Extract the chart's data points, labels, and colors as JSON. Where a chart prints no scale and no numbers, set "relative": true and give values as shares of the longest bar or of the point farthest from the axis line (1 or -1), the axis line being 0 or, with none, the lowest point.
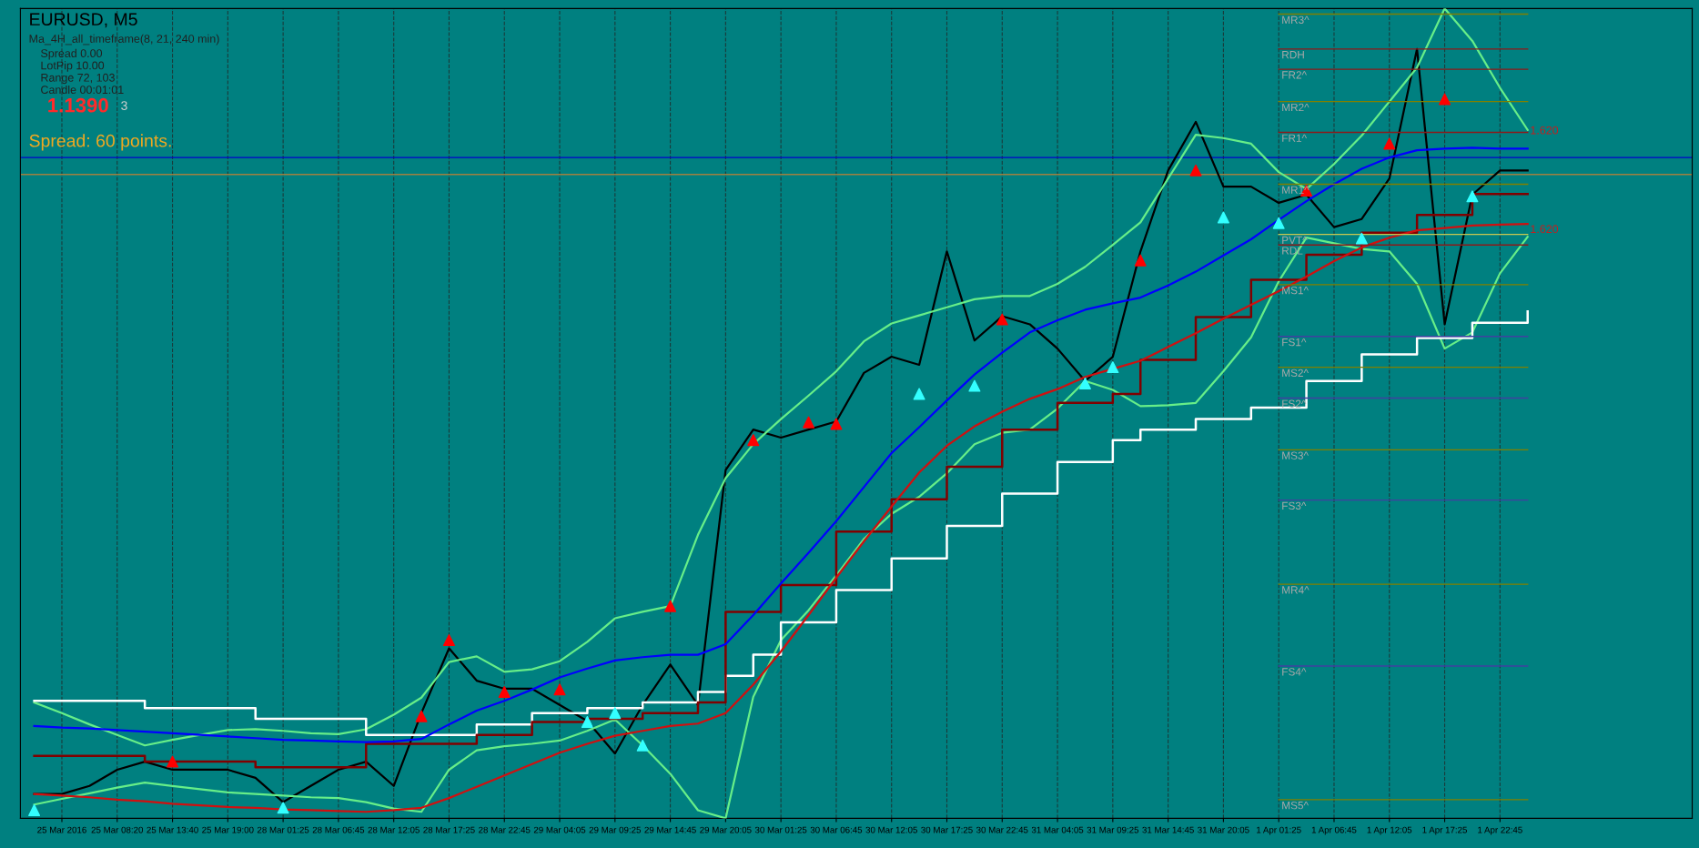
{
  "chart_data": {
    "type": "line",
    "title": "EURUSD, M5",
    "relative": true,
    "tick_labels": "x",
    "grid": true,
    "categories": [
      null,
      "25 Mar 2016",
      null,
      "25 Mar 08:20",
      null,
      "25 Mar 13:40",
      null,
      "25 Mar 19:00",
      null,
      "28 Mar 01:25",
      null,
      "28 Mar 06:45",
      null,
      "28 Mar 12:05",
      null,
      "28 Mar 17:25",
      null,
      "28 Mar 22:45",
      null,
      "29 Mar 04:05",
      null,
      "29 Mar 09:25",
      null,
      "29 Mar 14:45",
      null,
      "29 Mar 20:05",
      null,
      "30 Mar 01:25",
      null,
      "30 Mar 06:45",
      null,
      "30 Mar 12:05",
      null,
      "30 Mar 17:25",
      null,
      "30 Mar 22:45",
      null,
      "31 Mar 04:05",
      null,
      "31 Mar 09:25",
      null,
      "31 Mar 14:45",
      null,
      "31 Mar 20:05",
      null,
      "1 Apr 01:25",
      null,
      "1 Apr 06:45",
      null,
      "1 Apr 12:05",
      null,
      "1 Apr 17:25",
      null,
      "1 Apr 22:45",
      null
    ],
    "annotations": [
      "Ma_4H_all_timeframe(8, 21, 240 min)",
      "Spread 0.00",
      "LotPip 10.00",
      "Range 72, 103",
      "Candle 00:01:01",
      "1.1390",
      "3",
      "Spread: 60 points.",
      "1.620",
      "1.620"
    ],
    "ref_lines": [
      {
        "axis": "y",
        "value": 0.816,
        "color": "#0000cd"
      },
      {
        "axis": "y",
        "value": 0.795,
        "color": "#a08040"
      }
    ],
    "series": [
      {
        "color": "#000000",
        "values": [
          0.03,
          0.03,
          0.04,
          0.06,
          0.07,
          0.06,
          0.06,
          0.06,
          0.05,
          0.02,
          0.04,
          0.06,
          0.07,
          0.04,
          0.13,
          0.21,
          0.17,
          0.16,
          0.16,
          0.14,
          0.12,
          0.08,
          0.14,
          0.19,
          0.14,
          0.43,
          0.48,
          0.47,
          0.48,
          0.49,
          0.55,
          0.57,
          0.56,
          0.7,
          0.59,
          0.62,
          0.61,
          0.58,
          0.54,
          0.57,
          0.7,
          0.8,
          0.86,
          0.78,
          0.78,
          0.76,
          0.77,
          0.73,
          0.74,
          0.79,
          0.95,
          0.61,
          0.77,
          0.8,
          0.8
        ]
      },
      {
        "color": "#66ee88",
        "values": [
          0.143,
          0.13,
          0.116,
          0.103,
          0.09,
          0.097,
          0.103,
          0.109,
          0.11,
          0.108,
          0.105,
          0.104,
          0.11,
          0.128,
          0.149,
          0.193,
          0.2,
          0.181,
          0.184,
          0.194,
          0.218,
          0.247,
          0.255,
          0.262,
          0.35,
          0.42,
          0.462,
          0.493,
          0.522,
          0.552,
          0.589,
          0.611,
          0.621,
          0.631,
          0.641,
          0.645,
          0.645,
          0.66,
          0.681,
          0.708,
          0.736,
          0.79,
          0.844,
          0.84,
          0.833,
          0.798,
          0.777,
          0.808,
          0.843,
          0.885,
          0.927,
          1.0,
          0.96,
          0.902,
          0.85
        ]
      },
      {
        "color": "#66ee88",
        "values": [
          0.017,
          0.024,
          0.031,
          0.038,
          0.044,
          0.04,
          0.036,
          0.032,
          0.03,
          0.028,
          0.026,
          0.025,
          0.02,
          0.012,
          0.008,
          0.06,
          0.084,
          0.089,
          0.092,
          0.096,
          0.108,
          0.122,
          0.09,
          0.055,
          0.01,
          0.0,
          0.15,
          0.22,
          0.257,
          0.3,
          0.345,
          0.376,
          0.397,
          0.426,
          0.462,
          0.476,
          0.48,
          0.506,
          0.54,
          0.529,
          0.509,
          0.51,
          0.513,
          0.552,
          0.594,
          0.663,
          0.717,
          0.71,
          0.703,
          0.7,
          0.66,
          0.58,
          0.6,
          0.673,
          0.718
        ]
      },
      {
        "type": "step",
        "color": "#ffffff",
        "values": [
          0.145,
          0.145,
          0.145,
          0.145,
          0.136,
          0.136,
          0.136,
          0.136,
          0.123,
          0.123,
          0.123,
          0.123,
          0.103,
          0.103,
          0.103,
          0.103,
          0.116,
          0.116,
          0.13,
          0.13,
          0.136,
          0.136,
          0.143,
          0.143,
          0.156,
          0.176,
          0.202,
          0.242,
          0.242,
          0.282,
          0.282,
          0.321,
          0.321,
          0.361,
          0.361,
          0.401,
          0.401,
          0.44,
          0.44,
          0.467,
          0.48,
          0.48,
          0.493,
          0.493,
          0.507,
          0.507,
          0.54,
          0.54,
          0.573,
          0.573,
          0.593,
          0.593,
          0.612,
          0.612,
          0.626
        ]
      },
      {
        "type": "step",
        "color": "#800000",
        "values": [
          0.077,
          0.077,
          0.077,
          0.077,
          0.07,
          0.07,
          0.07,
          0.07,
          0.063,
          0.063,
          0.063,
          0.063,
          0.092,
          0.092,
          0.092,
          0.092,
          0.103,
          0.103,
          0.119,
          0.119,
          0.123,
          0.123,
          0.13,
          0.13,
          0.143,
          0.255,
          0.255,
          0.288,
          0.288,
          0.354,
          0.354,
          0.394,
          0.394,
          0.434,
          0.434,
          0.48,
          0.48,
          0.513,
          0.513,
          0.524,
          0.566,
          0.566,
          0.619,
          0.619,
          0.665,
          0.665,
          0.696,
          0.696,
          0.723,
          0.723,
          0.745,
          0.745,
          0.771,
          0.771,
          0.771
        ]
      },
      {
        "color": "#0000ff",
        "values": [
          0.114,
          0.112,
          0.111,
          0.109,
          0.107,
          0.105,
          0.103,
          0.101,
          0.099,
          0.097,
          0.096,
          0.095,
          0.094,
          0.095,
          0.098,
          0.116,
          0.133,
          0.145,
          0.159,
          0.174,
          0.185,
          0.195,
          0.199,
          0.202,
          0.202,
          0.215,
          0.251,
          0.29,
          0.328,
          0.367,
          0.409,
          0.451,
          0.483,
          0.516,
          0.548,
          0.575,
          0.6,
          0.615,
          0.628,
          0.636,
          0.643,
          0.658,
          0.675,
          0.695,
          0.715,
          0.739,
          0.762,
          0.783,
          0.802,
          0.816,
          0.825,
          0.827,
          0.828,
          0.827,
          0.827
        ]
      },
      {
        "color": "#d01010",
        "values": [
          0.03,
          0.028,
          0.026,
          0.023,
          0.021,
          0.018,
          0.016,
          0.014,
          0.013,
          0.011,
          0.01,
          0.009,
          0.008,
          0.01,
          0.013,
          0.025,
          0.039,
          0.053,
          0.067,
          0.081,
          0.092,
          0.102,
          0.108,
          0.114,
          0.117,
          0.13,
          0.165,
          0.206,
          0.251,
          0.297,
          0.342,
          0.385,
          0.427,
          0.46,
          0.484,
          0.502,
          0.518,
          0.53,
          0.545,
          0.555,
          0.565,
          0.582,
          0.599,
          0.617,
          0.634,
          0.651,
          0.669,
          0.688,
          0.705,
          0.717,
          0.726,
          0.729,
          0.732,
          0.733,
          0.734
        ]
      },
      {
        "type": "scatter",
        "marker": "triangle",
        "color": "#ff0000",
        "values": [
          null,
          null,
          null,
          null,
          null,
          0.07,
          null,
          null,
          null,
          null,
          null,
          null,
          null,
          null,
          0.126,
          0.22,
          null,
          0.156,
          null,
          0.159,
          null,
          null,
          null,
          0.262,
          null,
          null,
          0.467,
          null,
          0.489,
          0.487,
          null,
          null,
          null,
          null,
          null,
          0.616,
          null,
          null,
          null,
          null,
          0.689,
          null,
          0.8,
          null,
          null,
          null,
          0.775,
          null,
          null,
          0.833,
          null,
          0.888,
          null,
          null,
          null
        ]
      },
      {
        "type": "scatter",
        "marker": "triangle",
        "color": "#33ffff",
        "values": [
          0.01,
          null,
          null,
          null,
          null,
          null,
          null,
          null,
          null,
          0.013,
          null,
          null,
          null,
          null,
          null,
          null,
          null,
          null,
          null,
          null,
          0.119,
          0.13,
          0.09,
          null,
          null,
          null,
          null,
          null,
          null,
          null,
          null,
          null,
          0.524,
          null,
          0.534,
          null,
          null,
          null,
          0.537,
          0.557,
          null,
          null,
          null,
          0.742,
          null,
          0.735,
          null,
          null,
          0.716,
          null,
          null,
          null,
          0.768,
          null,
          null
        ]
      },
      {
        "name": "MR3^",
        "color": "#808000",
        "values": [
          null,
          null,
          null,
          null,
          null,
          null,
          null,
          null,
          null,
          null,
          null,
          null,
          null,
          null,
          null,
          null,
          null,
          null,
          null,
          null,
          null,
          null,
          null,
          null,
          null,
          null,
          null,
          null,
          null,
          null,
          null,
          null,
          null,
          null,
          null,
          null,
          null,
          null,
          null,
          null,
          null,
          null,
          null,
          null,
          null,
          0.993,
          0.993,
          0.993,
          0.993,
          0.993,
          0.993,
          0.993,
          0.993,
          0.993,
          0.993
        ]
      },
      {
        "name": "RDH",
        "color": "#8b1a1a",
        "values": [
          null,
          null,
          null,
          null,
          null,
          null,
          null,
          null,
          null,
          null,
          null,
          null,
          null,
          null,
          null,
          null,
          null,
          null,
          null,
          null,
          null,
          null,
          null,
          null,
          null,
          null,
          null,
          null,
          null,
          null,
          null,
          null,
          null,
          null,
          null,
          null,
          null,
          null,
          null,
          null,
          null,
          null,
          null,
          null,
          null,
          0.95,
          0.95,
          0.95,
          0.95,
          0.95,
          0.95,
          0.95,
          0.95,
          0.95,
          0.95
        ]
      },
      {
        "name": "FR2^",
        "color": "#8b1a1a",
        "values": [
          null,
          null,
          null,
          null,
          null,
          null,
          null,
          null,
          null,
          null,
          null,
          null,
          null,
          null,
          null,
          null,
          null,
          null,
          null,
          null,
          null,
          null,
          null,
          null,
          null,
          null,
          null,
          null,
          null,
          null,
          null,
          null,
          null,
          null,
          null,
          null,
          null,
          null,
          null,
          null,
          null,
          null,
          null,
          null,
          null,
          0.925,
          0.925,
          0.925,
          0.925,
          0.925,
          0.925,
          0.925,
          0.925,
          0.925,
          0.925
        ]
      },
      {
        "name": "MR2^",
        "color": "#808000",
        "values": [
          null,
          null,
          null,
          null,
          null,
          null,
          null,
          null,
          null,
          null,
          null,
          null,
          null,
          null,
          null,
          null,
          null,
          null,
          null,
          null,
          null,
          null,
          null,
          null,
          null,
          null,
          null,
          null,
          null,
          null,
          null,
          null,
          null,
          null,
          null,
          null,
          null,
          null,
          null,
          null,
          null,
          null,
          null,
          null,
          null,
          0.885,
          0.885,
          0.885,
          0.885,
          0.885,
          0.885,
          0.885,
          0.885,
          0.885,
          0.885
        ]
      },
      {
        "name": "FR1^",
        "color": "#8b1a1a",
        "values": [
          null,
          null,
          null,
          null,
          null,
          null,
          null,
          null,
          null,
          null,
          null,
          null,
          null,
          null,
          null,
          null,
          null,
          null,
          null,
          null,
          null,
          null,
          null,
          null,
          null,
          null,
          null,
          null,
          null,
          null,
          null,
          null,
          null,
          null,
          null,
          null,
          null,
          null,
          null,
          null,
          null,
          null,
          null,
          null,
          null,
          0.847,
          0.847,
          0.847,
          0.847,
          0.847,
          0.847,
          0.847,
          0.847,
          0.847,
          0.847
        ]
      },
      {
        "name": "MR1^",
        "color": "#808000",
        "values": [
          null,
          null,
          null,
          null,
          null,
          null,
          null,
          null,
          null,
          null,
          null,
          null,
          null,
          null,
          null,
          null,
          null,
          null,
          null,
          null,
          null,
          null,
          null,
          null,
          null,
          null,
          null,
          null,
          null,
          null,
          null,
          null,
          null,
          null,
          null,
          null,
          null,
          null,
          null,
          null,
          null,
          null,
          null,
          null,
          null,
          0.783,
          0.783,
          0.783,
          0.783,
          0.783,
          0.783,
          0.783,
          0.783,
          0.783,
          0.783
        ]
      },
      {
        "name": "PVT^",
        "color": "#c8c850",
        "values": [
          null,
          null,
          null,
          null,
          null,
          null,
          null,
          null,
          null,
          null,
          null,
          null,
          null,
          null,
          null,
          null,
          null,
          null,
          null,
          null,
          null,
          null,
          null,
          null,
          null,
          null,
          null,
          null,
          null,
          null,
          null,
          null,
          null,
          null,
          null,
          null,
          null,
          null,
          null,
          null,
          null,
          null,
          null,
          null,
          null,
          0.721,
          0.721,
          0.721,
          0.721,
          0.721,
          0.721,
          0.721,
          0.721,
          0.721,
          0.721
        ]
      },
      {
        "name": "RDL",
        "color": "#8b1a1a",
        "values": [
          null,
          null,
          null,
          null,
          null,
          null,
          null,
          null,
          null,
          null,
          null,
          null,
          null,
          null,
          null,
          null,
          null,
          null,
          null,
          null,
          null,
          null,
          null,
          null,
          null,
          null,
          null,
          null,
          null,
          null,
          null,
          null,
          null,
          null,
          null,
          null,
          null,
          null,
          null,
          null,
          null,
          null,
          null,
          null,
          null,
          0.708,
          0.708,
          0.708,
          0.708,
          0.708,
          0.708,
          0.708,
          0.708,
          0.708,
          0.708
        ]
      },
      {
        "name": "MS1^",
        "color": "#808000",
        "values": [
          null,
          null,
          null,
          null,
          null,
          null,
          null,
          null,
          null,
          null,
          null,
          null,
          null,
          null,
          null,
          null,
          null,
          null,
          null,
          null,
          null,
          null,
          null,
          null,
          null,
          null,
          null,
          null,
          null,
          null,
          null,
          null,
          null,
          null,
          null,
          null,
          null,
          null,
          null,
          null,
          null,
          null,
          null,
          null,
          null,
          0.659,
          0.659,
          0.659,
          0.659,
          0.659,
          0.659,
          0.659,
          0.659,
          0.659,
          0.659
        ]
      },
      {
        "name": "FS1^",
        "color": "#4040a0",
        "values": [
          null,
          null,
          null,
          null,
          null,
          null,
          null,
          null,
          null,
          null,
          null,
          null,
          null,
          null,
          null,
          null,
          null,
          null,
          null,
          null,
          null,
          null,
          null,
          null,
          null,
          null,
          null,
          null,
          null,
          null,
          null,
          null,
          null,
          null,
          null,
          null,
          null,
          null,
          null,
          null,
          null,
          null,
          null,
          null,
          null,
          0.595,
          0.595,
          0.595,
          0.595,
          0.595,
          0.595,
          0.595,
          0.595,
          0.595,
          0.595
        ]
      },
      {
        "name": "MS2^",
        "color": "#808000",
        "values": [
          null,
          null,
          null,
          null,
          null,
          null,
          null,
          null,
          null,
          null,
          null,
          null,
          null,
          null,
          null,
          null,
          null,
          null,
          null,
          null,
          null,
          null,
          null,
          null,
          null,
          null,
          null,
          null,
          null,
          null,
          null,
          null,
          null,
          null,
          null,
          null,
          null,
          null,
          null,
          null,
          null,
          null,
          null,
          null,
          null,
          0.557,
          0.557,
          0.557,
          0.557,
          0.557,
          0.557,
          0.557,
          0.557,
          0.557,
          0.557
        ]
      },
      {
        "name": "FS2^",
        "color": "#4040a0",
        "values": [
          null,
          null,
          null,
          null,
          null,
          null,
          null,
          null,
          null,
          null,
          null,
          null,
          null,
          null,
          null,
          null,
          null,
          null,
          null,
          null,
          null,
          null,
          null,
          null,
          null,
          null,
          null,
          null,
          null,
          null,
          null,
          null,
          null,
          null,
          null,
          null,
          null,
          null,
          null,
          null,
          null,
          null,
          null,
          null,
          null,
          0.519,
          0.519,
          0.519,
          0.519,
          0.519,
          0.519,
          0.519,
          0.519,
          0.519,
          0.519
        ]
      },
      {
        "name": "MS3^",
        "color": "#808000",
        "values": [
          null,
          null,
          null,
          null,
          null,
          null,
          null,
          null,
          null,
          null,
          null,
          null,
          null,
          null,
          null,
          null,
          null,
          null,
          null,
          null,
          null,
          null,
          null,
          null,
          null,
          null,
          null,
          null,
          null,
          null,
          null,
          null,
          null,
          null,
          null,
          null,
          null,
          null,
          null,
          null,
          null,
          null,
          null,
          null,
          null,
          0.455,
          0.455,
          0.455,
          0.455,
          0.455,
          0.455,
          0.455,
          0.455,
          0.455,
          0.455
        ]
      },
      {
        "name": "FS3^",
        "color": "#4040a0",
        "values": [
          null,
          null,
          null,
          null,
          null,
          null,
          null,
          null,
          null,
          null,
          null,
          null,
          null,
          null,
          null,
          null,
          null,
          null,
          null,
          null,
          null,
          null,
          null,
          null,
          null,
          null,
          null,
          null,
          null,
          null,
          null,
          null,
          null,
          null,
          null,
          null,
          null,
          null,
          null,
          null,
          null,
          null,
          null,
          null,
          null,
          0.393,
          0.393,
          0.393,
          0.393,
          0.393,
          0.393,
          0.393,
          0.393,
          0.393,
          0.393
        ]
      },
      {
        "name": "MR4^",
        "color": "#808000",
        "values": [
          null,
          null,
          null,
          null,
          null,
          null,
          null,
          null,
          null,
          null,
          null,
          null,
          null,
          null,
          null,
          null,
          null,
          null,
          null,
          null,
          null,
          null,
          null,
          null,
          null,
          null,
          null,
          null,
          null,
          null,
          null,
          null,
          null,
          null,
          null,
          null,
          null,
          null,
          null,
          null,
          null,
          null,
          null,
          null,
          null,
          0.289,
          0.289,
          0.289,
          0.289,
          0.289,
          0.289,
          0.289,
          0.289,
          0.289,
          0.289
        ]
      },
      {
        "name": "FS4^",
        "color": "#4040a0",
        "values": [
          null,
          null,
          null,
          null,
          null,
          null,
          null,
          null,
          null,
          null,
          null,
          null,
          null,
          null,
          null,
          null,
          null,
          null,
          null,
          null,
          null,
          null,
          null,
          null,
          null,
          null,
          null,
          null,
          null,
          null,
          null,
          null,
          null,
          null,
          null,
          null,
          null,
          null,
          null,
          null,
          null,
          null,
          null,
          null,
          null,
          0.188,
          0.188,
          0.188,
          0.188,
          0.188,
          0.188,
          0.188,
          0.188,
          0.188,
          0.188
        ]
      },
      {
        "name": "MS5^",
        "color": "#808000",
        "values": [
          null,
          null,
          null,
          null,
          null,
          null,
          null,
          null,
          null,
          null,
          null,
          null,
          null,
          null,
          null,
          null,
          null,
          null,
          null,
          null,
          null,
          null,
          null,
          null,
          null,
          null,
          null,
          null,
          null,
          null,
          null,
          null,
          null,
          null,
          null,
          null,
          null,
          null,
          null,
          null,
          null,
          null,
          null,
          null,
          null,
          0.023,
          0.023,
          0.023,
          0.023,
          0.023,
          0.023,
          0.023,
          0.023,
          0.023,
          0.023
        ]
      }
    ]
  }
}
